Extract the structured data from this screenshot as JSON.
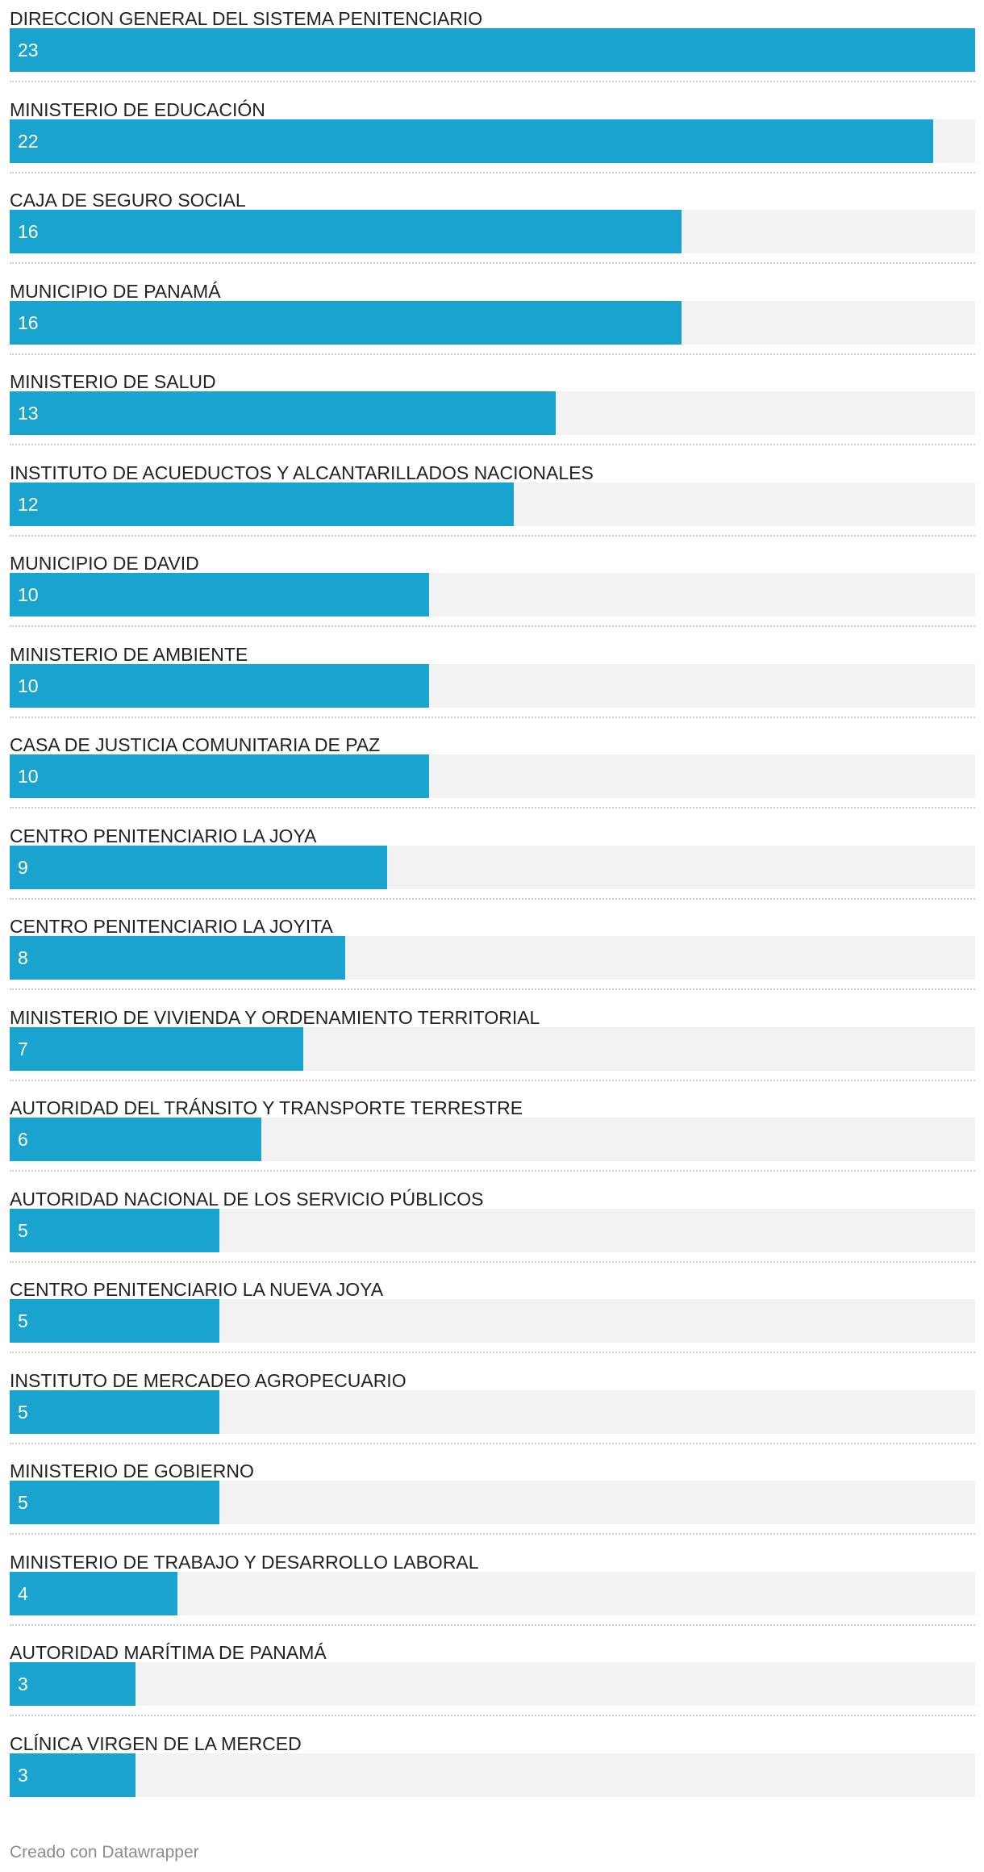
{
  "chart_data": {
    "type": "bar",
    "orientation": "horizontal",
    "categories": [
      "DIRECCION GENERAL DEL SISTEMA PENITENCIARIO",
      "MINISTERIO DE EDUCACIÓN",
      "CAJA DE SEGURO SOCIAL",
      "MUNICIPIO DE PANAMÁ",
      "MINISTERIO DE SALUD",
      "INSTITUTO DE ACUEDUCTOS Y ALCANTARILLADOS NACIONALES",
      "MUNICIPIO DE DAVID",
      "MINISTERIO DE AMBIENTE",
      "CASA DE JUSTICIA COMUNITARIA DE PAZ",
      "CENTRO PENITENCIARIO LA JOYA",
      "CENTRO PENITENCIARIO LA JOYITA",
      "MINISTERIO DE VIVIENDA Y ORDENAMIENTO TERRITORIAL",
      "AUTORIDAD DEL TRÁNSITO Y TRANSPORTE TERRESTRE",
      "AUTORIDAD NACIONAL DE LOS SERVICIO PÚBLICOS",
      "CENTRO PENITENCIARIO LA NUEVA JOYA",
      "INSTITUTO DE MERCADEO AGROPECUARIO",
      "MINISTERIO DE GOBIERNO",
      "MINISTERIO DE TRABAJO Y DESARROLLO LABORAL",
      "AUTORIDAD MARÍTIMA DE PANAMÁ",
      "CLÍNICA VIRGEN DE LA MERCED"
    ],
    "values": [
      23,
      22,
      16,
      16,
      13,
      12,
      10,
      10,
      10,
      9,
      8,
      7,
      6,
      5,
      5,
      5,
      5,
      4,
      3,
      3
    ],
    "title": "",
    "xlabel": "",
    "ylabel": "",
    "xlim": [
      0,
      23
    ],
    "grid": false,
    "legend": "none",
    "colors": {
      "bar": "#1aa3cf",
      "track": "#f2f2f2",
      "label": "#222222",
      "value_label": "#ffffff",
      "divider": "#d0d0d0"
    }
  },
  "footer": {
    "credit": "Creado con Datawrapper",
    "credit_color": "#8c8c8c"
  }
}
